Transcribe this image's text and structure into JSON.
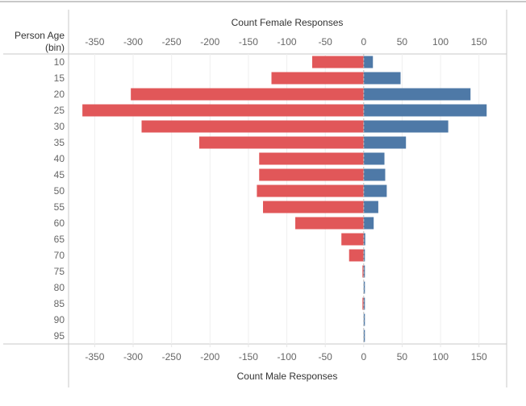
{
  "chart_data": {
    "type": "bar",
    "orientation": "horizontal",
    "subtype": "population-pyramid",
    "row_header": [
      "Person Age",
      "(bin)"
    ],
    "top_axis_title": "Count Female Responses",
    "bottom_axis_title": "Count Male Responses",
    "categories": [
      "10",
      "15",
      "20",
      "25",
      "30",
      "35",
      "40",
      "45",
      "50",
      "55",
      "60",
      "65",
      "70",
      "75",
      "80",
      "85",
      "90",
      "95"
    ],
    "series": [
      {
        "name": "Female Responses",
        "color": "#e15759",
        "values": [
          -67,
          -120,
          -303,
          -366,
          -289,
          -214,
          -136,
          -136,
          -139,
          -131,
          -89,
          -29,
          -19,
          -1,
          0,
          -1,
          0,
          0
        ]
      },
      {
        "name": "Male Responses",
        "color": "#4e79a7",
        "values": [
          12,
          48,
          139,
          160,
          110,
          55,
          27,
          28,
          30,
          19,
          13,
          2,
          1,
          1,
          1,
          1,
          1,
          1
        ]
      }
    ],
    "x_ticks": [
      -350,
      -300,
      -250,
      -200,
      -150,
      -100,
      -50,
      0,
      50,
      100,
      150
    ],
    "xlim": [
      -384,
      186
    ],
    "grid": true,
    "legend": "none"
  }
}
